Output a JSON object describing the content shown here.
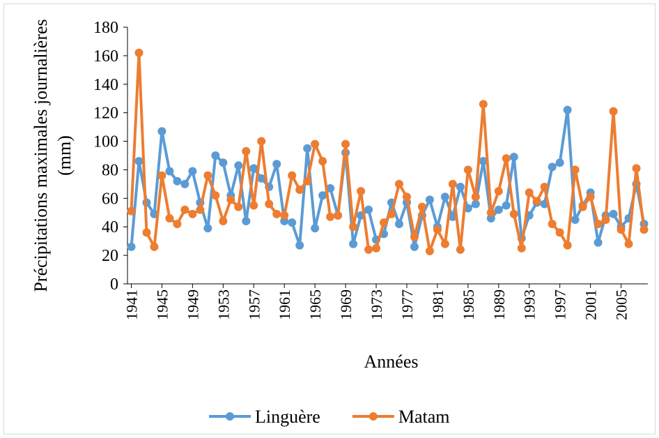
{
  "chart_data": {
    "type": "line",
    "ylabel": [
      "Précipitations maximales journalières",
      "(mm)"
    ],
    "xlabel": "Années",
    "categories": [
      "1941",
      null,
      null,
      null,
      "1945",
      null,
      null,
      null,
      "1949",
      null,
      null,
      null,
      "1953",
      null,
      null,
      null,
      "1957",
      null,
      null,
      null,
      "1961",
      null,
      null,
      null,
      "1965",
      null,
      null,
      null,
      "1969",
      null,
      null,
      null,
      "1973",
      null,
      null,
      null,
      "1977",
      null,
      null,
      null,
      "1981",
      null,
      null,
      null,
      "1985",
      null,
      null,
      null,
      "1989",
      null,
      null,
      null,
      "1993",
      null,
      null,
      null,
      "1997",
      null,
      null,
      null,
      "2001",
      null,
      null,
      null,
      "2005",
      null,
      null,
      null
    ],
    "series": [
      {
        "name": "Linguère",
        "color": "#5b9bd5",
        "values": [
          26,
          86,
          57,
          49,
          107,
          79,
          72,
          70,
          79,
          57,
          39,
          90,
          85,
          62,
          83,
          44,
          81,
          74,
          68,
          84,
          44,
          43,
          27,
          95,
          39,
          62,
          67,
          48,
          92,
          28,
          48,
          52,
          31,
          35,
          57,
          42,
          57,
          26,
          48,
          59,
          40,
          61,
          47,
          68,
          53,
          56,
          86,
          46,
          52,
          55,
          89,
          32,
          48,
          57,
          56,
          82,
          85,
          122,
          45,
          55,
          64,
          29,
          48,
          49,
          40,
          46,
          70,
          42
        ]
      },
      {
        "name": "Matam",
        "color": "#ed7d31",
        "values": [
          51,
          162,
          36,
          26,
          76,
          46,
          42,
          52,
          49,
          52,
          76,
          62,
          44,
          59,
          54,
          93,
          55,
          100,
          56,
          49,
          48,
          76,
          66,
          72,
          98,
          86,
          47,
          48,
          98,
          40,
          65,
          24,
          25,
          43,
          49,
          70,
          61,
          33,
          54,
          23,
          38,
          28,
          70,
          24,
          80,
          61,
          126,
          50,
          65,
          88,
          49,
          25,
          64,
          58,
          68,
          42,
          36,
          27,
          80,
          54,
          61,
          42,
          45,
          121,
          38,
          28,
          81,
          38
        ]
      }
    ],
    "ylim": [
      0,
      180
    ],
    "yticks": [
      0,
      20,
      40,
      60,
      80,
      100,
      120,
      140,
      160,
      180
    ],
    "grid": false,
    "legend": "bottom"
  }
}
